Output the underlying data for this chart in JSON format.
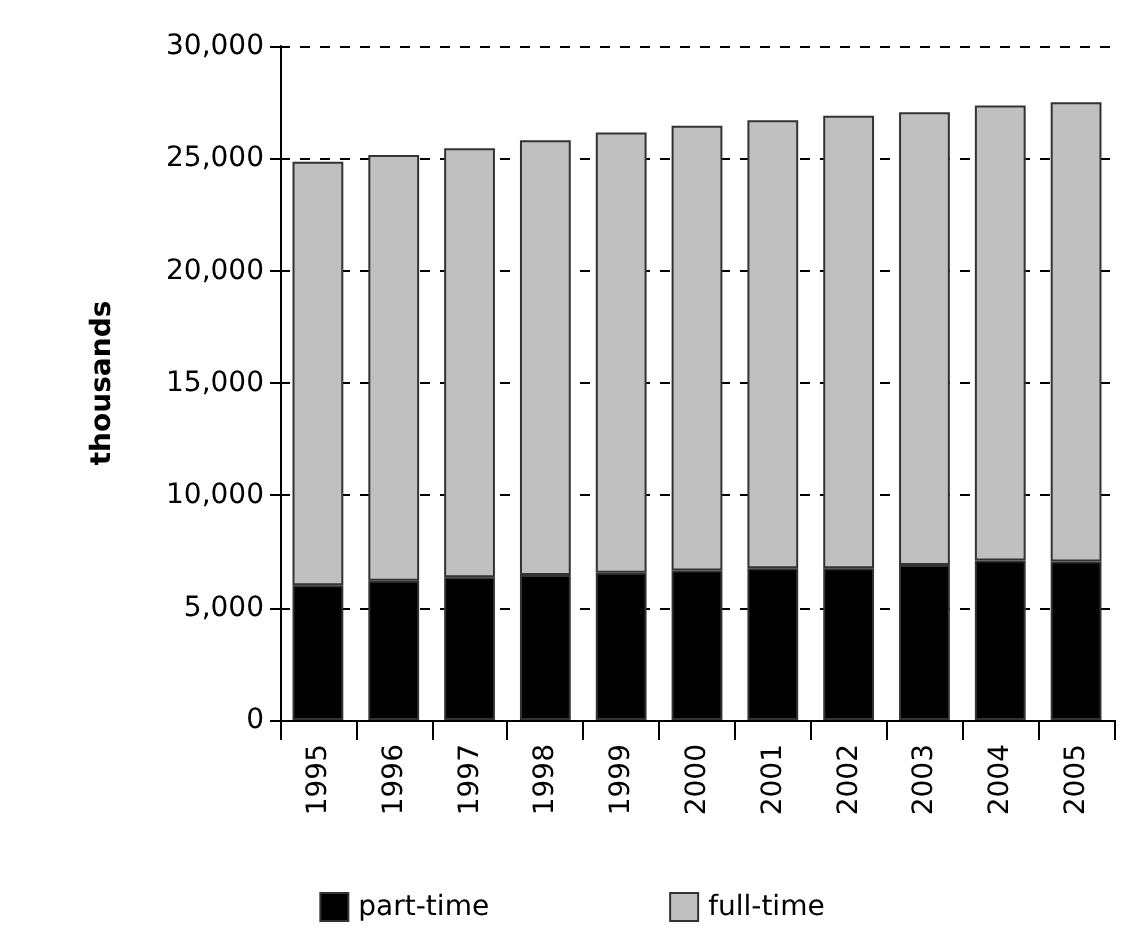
{
  "chart_data": {
    "type": "bar",
    "stacked": true,
    "ylabel": "thousands",
    "categories": [
      "1995",
      "1996",
      "1997",
      "1998",
      "1999",
      "2000",
      "2001",
      "2002",
      "2003",
      "2004",
      "2005"
    ],
    "series": [
      {
        "name": "part-time",
        "color": "#000000",
        "values": [
          6000,
          6200,
          6350,
          6450,
          6550,
          6650,
          6750,
          6750,
          6900,
          7100,
          7050
        ]
      },
      {
        "name": "full-time",
        "color": "#c0c0c0",
        "values": [
          18850,
          18950,
          19100,
          19350,
          19600,
          19800,
          19950,
          20150,
          20150,
          20250,
          20450
        ]
      }
    ],
    "ylim": [
      0,
      30000
    ],
    "yticks": [
      0,
      {
        "value": 5000,
        "label": "5,000"
      },
      {
        "value": 10000,
        "label": "10,000"
      },
      {
        "value": 15000,
        "label": "15,000"
      },
      {
        "value": 20000,
        "label": "20,000"
      },
      {
        "value": 25000,
        "label": "25,000"
      },
      {
        "value": 30000,
        "label": "30,000"
      }
    ],
    "grid": "y",
    "legend": "bottom"
  }
}
